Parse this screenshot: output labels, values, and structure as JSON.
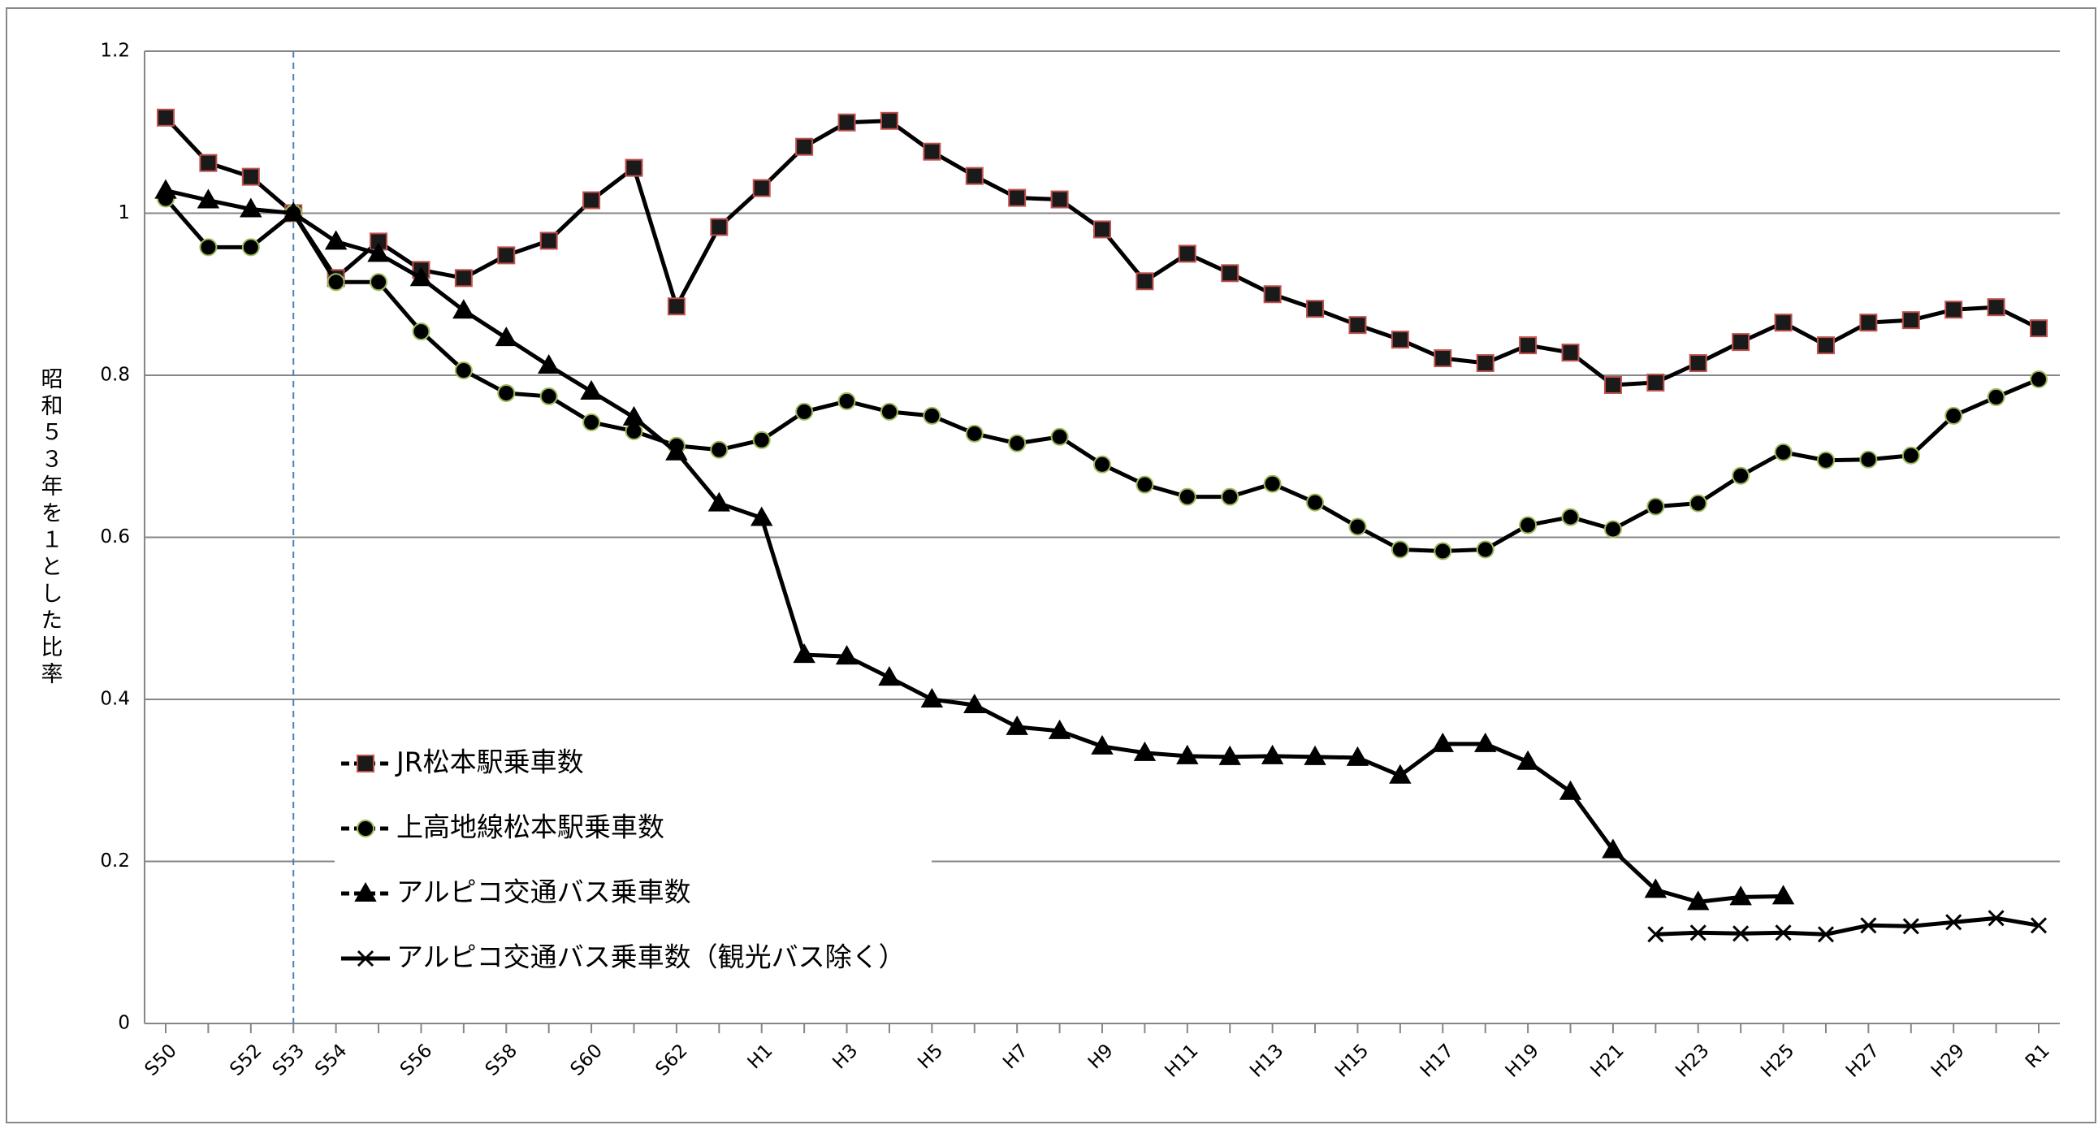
{
  "chart_data": {
    "type": "line",
    "y_label": "昭和５３年を１とした比率",
    "categories": [
      "S50",
      null,
      "S52",
      "S53",
      "S54",
      null,
      "S56",
      null,
      "S58",
      null,
      "S60",
      null,
      "S62",
      null,
      "H1",
      null,
      "H3",
      null,
      "H5",
      null,
      "H7",
      null,
      "H9",
      null,
      "H11",
      null,
      "H13",
      null,
      "H15",
      null,
      "H17",
      null,
      "H19",
      null,
      "H21",
      null,
      "H23",
      null,
      "H25",
      null,
      "H27",
      null,
      "H29",
      null,
      "R1"
    ],
    "ylim": [
      0,
      1.2
    ],
    "yticks": [
      0,
      0.2,
      0.4,
      0.6,
      0.8,
      1,
      1.2
    ],
    "grid": true,
    "legend": "lower left",
    "series": [
      {
        "name": "JR松本駅乗車数",
        "color": "#000000",
        "marker": "square",
        "marker_fill": "#1a1a1a",
        "marker_edge": "#c0504d",
        "values": [
          1.118,
          1.062,
          1.045,
          1.0,
          0.92,
          0.965,
          0.93,
          0.92,
          0.948,
          0.966,
          1.016,
          1.056,
          0.885,
          0.983,
          1.031,
          1.082,
          1.112,
          1.114,
          1.076,
          1.046,
          1.019,
          1.017,
          0.98,
          0.916,
          0.95,
          0.926,
          0.9,
          0.882,
          0.862,
          0.844,
          0.821,
          0.815,
          0.837,
          0.828,
          0.788,
          0.791,
          0.815,
          0.841,
          0.865,
          0.837,
          0.865,
          0.868,
          0.881,
          0.884,
          0.858
        ]
      },
      {
        "name": "上高地線松本駅乗車数",
        "color": "#000000",
        "marker": "circle",
        "marker_fill": "#000000",
        "marker_edge": "#9bbb59",
        "values": [
          1.018,
          0.958,
          0.958,
          1.0,
          0.915,
          0.915,
          0.854,
          0.806,
          0.778,
          0.774,
          0.742,
          0.731,
          0.713,
          0.708,
          0.72,
          0.755,
          0.768,
          0.755,
          0.75,
          0.728,
          0.716,
          0.724,
          0.69,
          0.665,
          0.65,
          0.65,
          0.666,
          0.643,
          0.613,
          0.585,
          0.583,
          0.585,
          0.615,
          0.625,
          0.61,
          0.638,
          0.642,
          0.676,
          0.705,
          0.695,
          0.696,
          0.701,
          0.75,
          0.773,
          0.795
        ]
      },
      {
        "name": "アルピコ交通バス乗車数",
        "color": "#000000",
        "marker": "triangle",
        "marker_fill": "#000000",
        "marker_edge": "#000000",
        "values": [
          1.028,
          1.016,
          1.005,
          1.0,
          0.965,
          0.95,
          0.92,
          0.88,
          0.846,
          0.812,
          0.78,
          0.748,
          0.705,
          0.642,
          0.624,
          0.455,
          0.453,
          0.427,
          0.4,
          0.393,
          0.366,
          0.361,
          0.342,
          0.334,
          0.33,
          0.329,
          0.33,
          0.329,
          0.328,
          0.306,
          0.345,
          0.345,
          0.323,
          0.286,
          0.214,
          0.165,
          0.15,
          0.156,
          0.157,
          null,
          null,
          null,
          null,
          null,
          null
        ]
      },
      {
        "name": "アルピコ交通バス乗車数（観光バス除く）",
        "color": "#000000",
        "marker": "x",
        "marker_fill": "#000000",
        "marker_edge": "#000000",
        "values": [
          null,
          null,
          null,
          null,
          null,
          null,
          null,
          null,
          null,
          null,
          null,
          null,
          null,
          null,
          null,
          null,
          null,
          null,
          null,
          null,
          null,
          null,
          null,
          null,
          null,
          null,
          null,
          null,
          null,
          null,
          null,
          null,
          null,
          null,
          null,
          0.11,
          0.112,
          0.111,
          0.112,
          0.11,
          0.121,
          0.12,
          0.125,
          0.13,
          0.121
        ]
      }
    ]
  }
}
